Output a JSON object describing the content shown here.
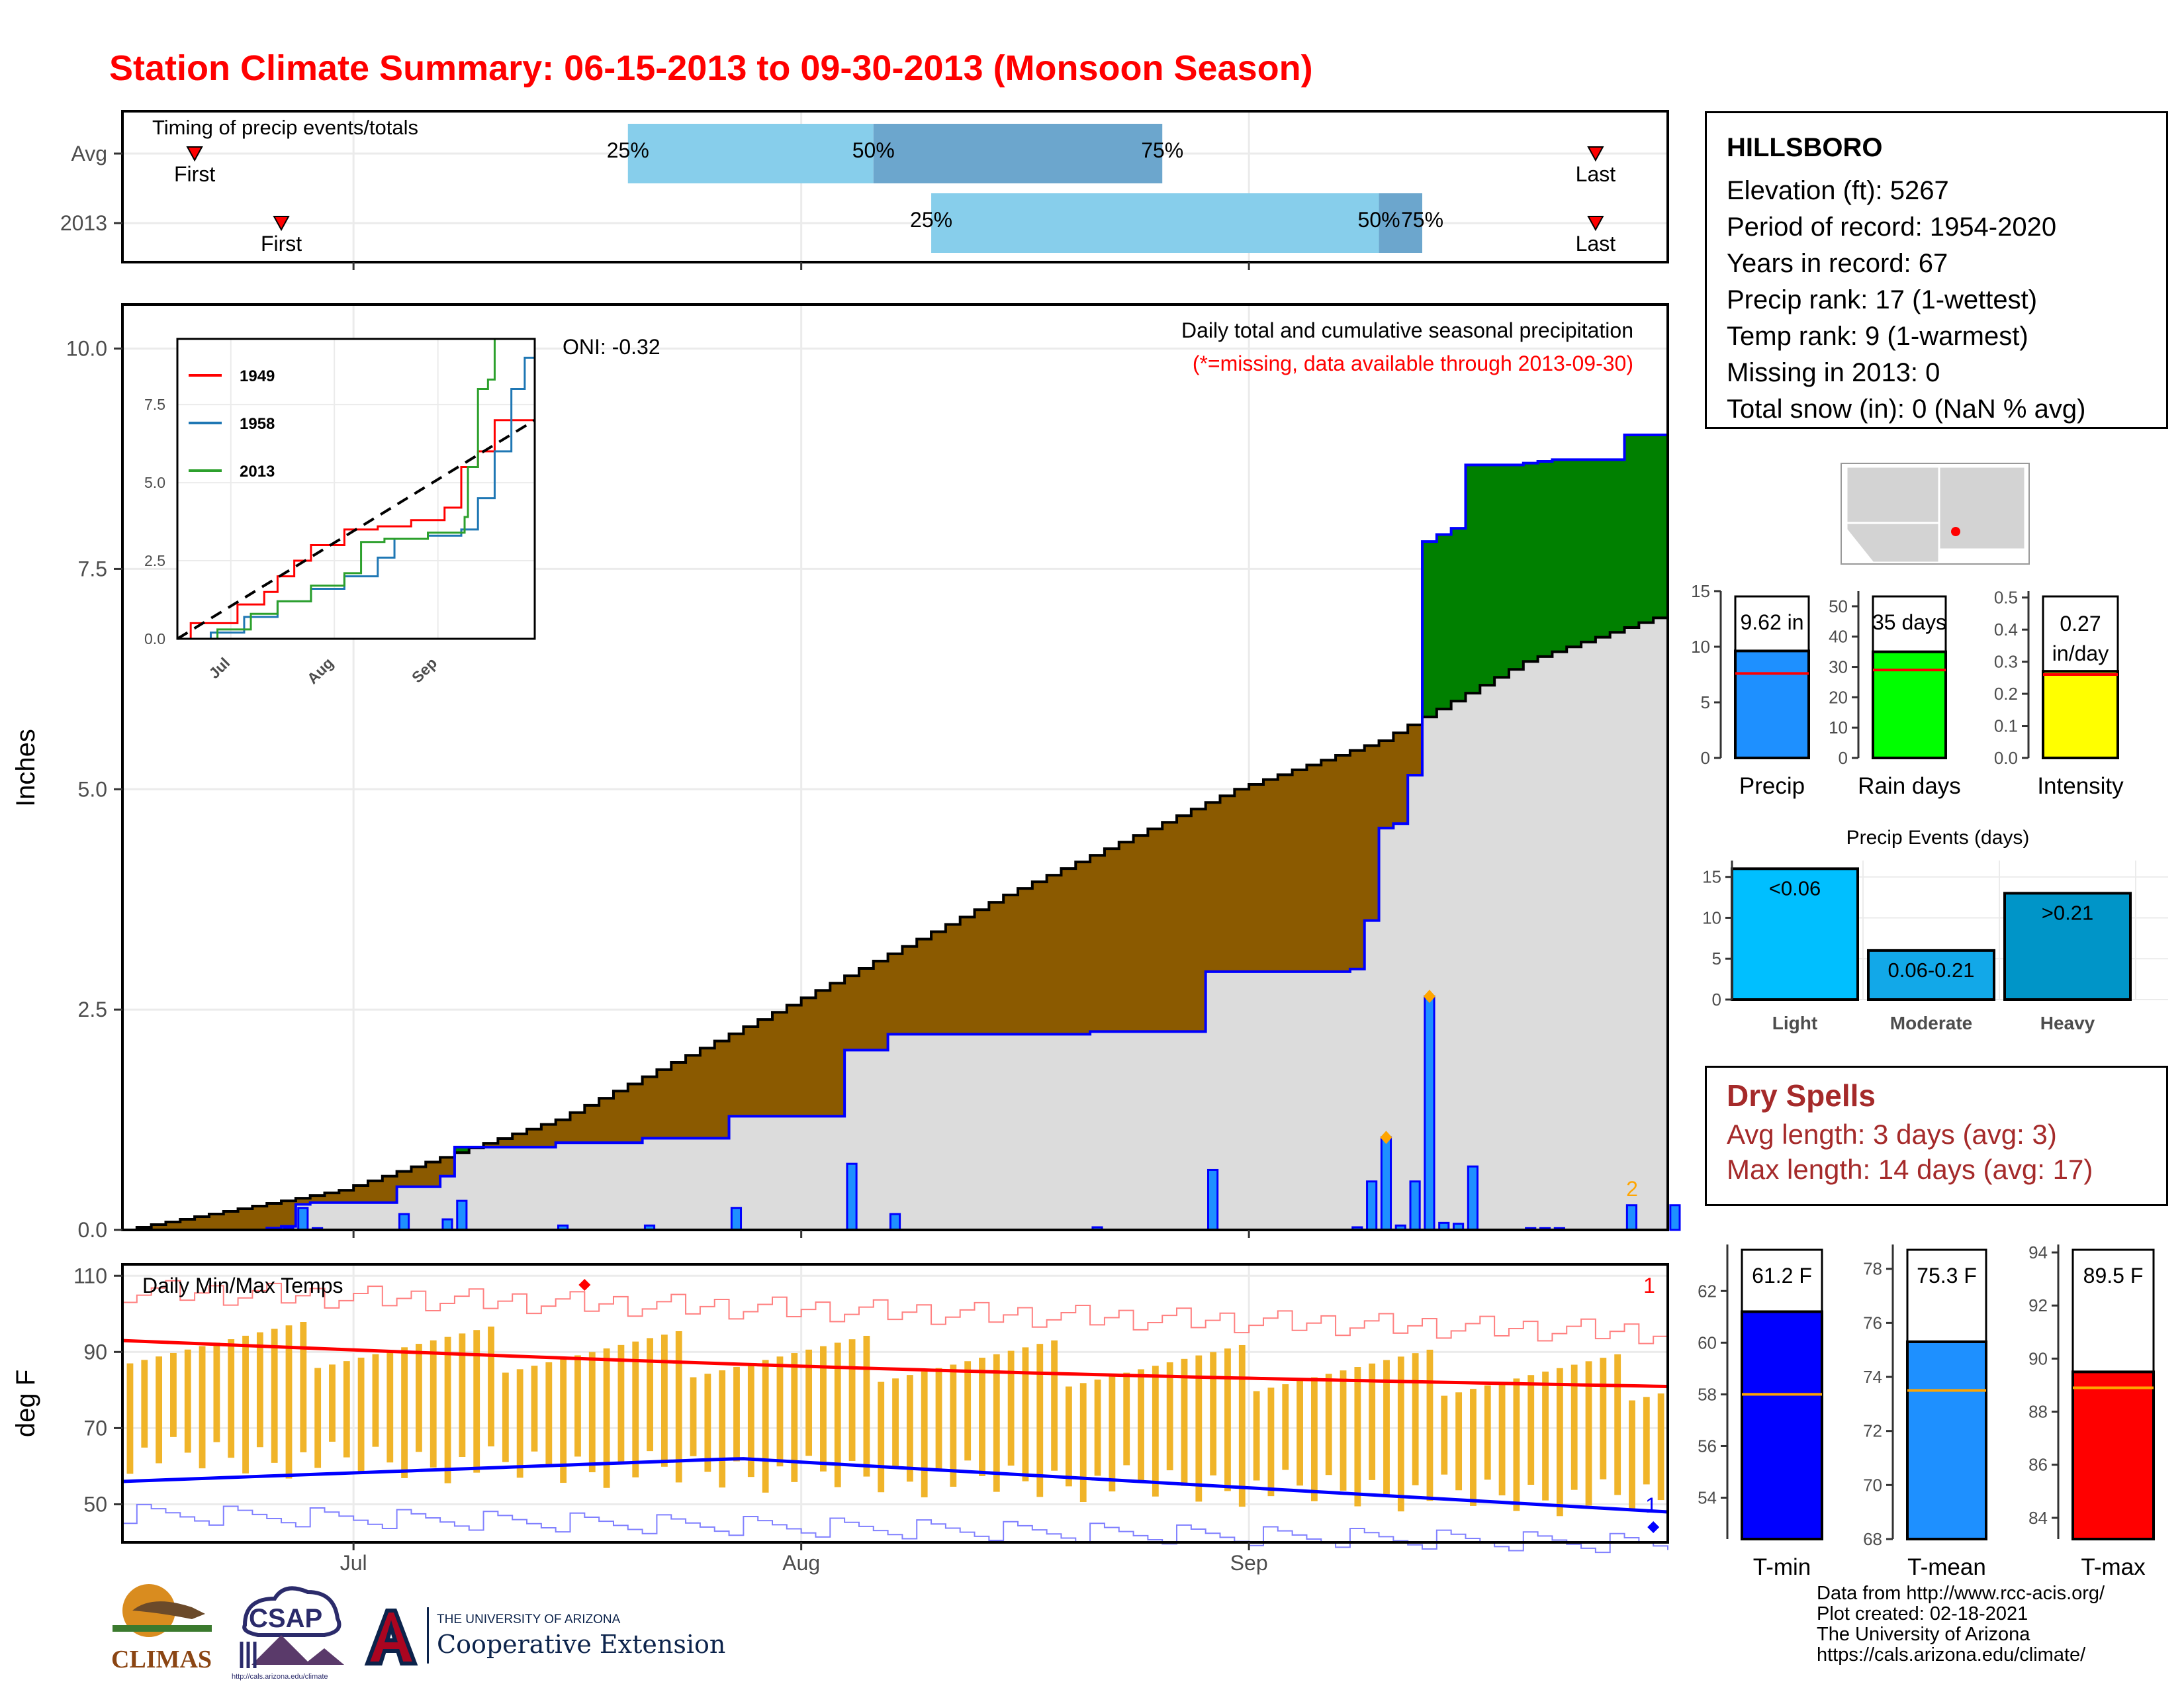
{
  "title": "Station Climate Summary: 06-15-2013 to 09-30-2013 (Monsoon Season)",
  "timing_panel": {
    "label": "Timing of precip events/totals",
    "rows": [
      "Avg",
      "2013"
    ],
    "avg": {
      "first": "2013-06-20",
      "q25": "2013-07-20",
      "q50": "2013-08-06",
      "q75": "2013-08-26",
      "last": "2013-09-25"
    },
    "y2013": {
      "first": "2013-06-26",
      "q25": "2013-08-10",
      "q50": "2013-09-10",
      "q75": "2013-09-13",
      "last": "2013-09-25"
    },
    "labels": {
      "first": "First",
      "last": "Last",
      "q25": "25%",
      "q50": "50%",
      "q75": "75%"
    }
  },
  "precip_panel": {
    "heading": "Daily total and cumulative seasonal precipitation",
    "missing_note": "(*=missing, data available through 2013-09-30)",
    "oni": "ONI: -0.32",
    "ylabel": "Inches",
    "corner_note": "2",
    "x_ticks": [
      "Jul",
      "Aug",
      "Sep"
    ],
    "y_ticks": [
      "0.0",
      "2.5",
      "5.0",
      "7.5",
      "10.0"
    ]
  },
  "temp_panel": {
    "heading": "Daily Min/Max Temps",
    "ylabel": "deg F",
    "corner_top": "1",
    "corner_bottom": "1",
    "y_ticks": [
      "50",
      "70",
      "90",
      "110"
    ],
    "x_ticks": [
      "Jul",
      "Aug",
      "Sep"
    ]
  },
  "station": {
    "name": "HILLSBORO",
    "lines": [
      "Elevation (ft): 5267",
      "Period of record: 1954-2020",
      "Years in record: 67",
      "Precip rank: 17 (1-wettest)",
      "Temp rank: 9 (1-warmest)",
      "Missing in 2013: 0",
      "Total snow (in): 0 (NaN % avg)"
    ]
  },
  "inset": {
    "legend": [
      "1949",
      "1958",
      "2013"
    ],
    "colors": [
      "#ff0000",
      "#1f77b4",
      "#2ca02c"
    ],
    "y_ticks": [
      "0.0",
      "2.5",
      "5.0",
      "7.5"
    ],
    "x_ticks": [
      "Jul",
      "Aug",
      "Sep"
    ]
  },
  "summary_bars": {
    "precip": {
      "label": "Precip",
      "value_label": "9.62 in",
      "value": 9.62,
      "avg": 7.6,
      "ylim": [
        0,
        15
      ],
      "ticks": [
        "0",
        "5",
        "10",
        "15"
      ],
      "color": "#1e90ff"
    },
    "rain_days": {
      "label": "Rain days",
      "value_label": "35 days",
      "value": 35,
      "avg": 29,
      "ylim": [
        0,
        55
      ],
      "ticks": [
        "0",
        "10",
        "20",
        "30",
        "40",
        "50"
      ],
      "color": "#00ff00"
    },
    "intensity": {
      "label": "Intensity",
      "value_label1": "0.27",
      "value_label2": "in/day",
      "value": 0.27,
      "avg": 0.26,
      "ylim": [
        0,
        0.52
      ],
      "ticks": [
        "0.0",
        "0.1",
        "0.2",
        "0.3",
        "0.4",
        "0.5"
      ],
      "color": "#ffff00"
    }
  },
  "precip_events": {
    "title": "Precip Events (days)",
    "categories": [
      "Light",
      "Moderate",
      "Heavy"
    ],
    "labels": [
      "<0.06",
      "0.06-0.21",
      ">0.21"
    ],
    "values": [
      16,
      6,
      13
    ],
    "ticks": [
      "0",
      "5",
      "10",
      "15"
    ],
    "colors": [
      "#00bfff",
      "#12a8e8",
      "#0095c8"
    ]
  },
  "dry_spells": {
    "title": "Dry Spells",
    "avg": "Avg length: 3 days (avg: 3)",
    "max": "Max length: 14 days (avg: 17)"
  },
  "temp_bars": {
    "tmin": {
      "label": "T-min",
      "value_label": "61.2 F",
      "value": 61.2,
      "avg": 58.0,
      "ylim": [
        52.4,
        63.8
      ],
      "ticks": [
        "54",
        "56",
        "58",
        "60",
        "62"
      ],
      "color": "#0000ff"
    },
    "tmean": {
      "label": "T-mean",
      "value_label": "75.3 F",
      "value": 75.3,
      "avg": 73.5,
      "ylim": [
        68,
        78.9
      ],
      "ticks": [
        "68",
        "70",
        "72",
        "74",
        "76",
        "78"
      ],
      "color": "#1e90ff"
    },
    "tmax": {
      "label": "T-max",
      "value_label": "89.5 F",
      "value": 89.5,
      "avg": 88.9,
      "ylim": [
        83.2,
        94.3
      ],
      "ticks": [
        "84",
        "86",
        "88",
        "90",
        "92",
        "94"
      ],
      "color": "#ff0000"
    }
  },
  "footer": [
    "Data from http://www.rcc-acis.org/",
    "Plot created: 02-18-2021",
    "The University of Arizona",
    "https://cals.arizona.edu/climate/"
  ],
  "logos": {
    "climas": "CLIMAS",
    "csap": "CSAP",
    "csap_url": "http://cals.arizona.edu/climate",
    "ua_line1": "THE UNIVERSITY OF ARIZONA",
    "ua_line2": "Cooperative Extension"
  },
  "chart_data": {
    "type": "area",
    "start_date": "2013-06-15",
    "xlabel": "",
    "ylabel": "Inches",
    "ylim": [
      0,
      10.5
    ],
    "daily_precip_nonzero": [
      {
        "d": "2013-06-25",
        "v": 0.02
      },
      {
        "d": "2013-06-26",
        "v": 0.02
      },
      {
        "d": "2013-06-27",
        "v": 0.25
      },
      {
        "d": "2013-06-28",
        "v": 0.02
      },
      {
        "d": "2013-07-04",
        "v": 0.18
      },
      {
        "d": "2013-07-07",
        "v": 0.12
      },
      {
        "d": "2013-07-08",
        "v": 0.33
      },
      {
        "d": "2013-07-15",
        "v": 0.05
      },
      {
        "d": "2013-07-21",
        "v": 0.05
      },
      {
        "d": "2013-07-27",
        "v": 0.25
      },
      {
        "d": "2013-08-04",
        "v": 0.75
      },
      {
        "d": "2013-08-07",
        "v": 0.18
      },
      {
        "d": "2013-08-21",
        "v": 0.03
      },
      {
        "d": "2013-08-29",
        "v": 0.68
      },
      {
        "d": "2013-09-09",
        "v": 0.53
      },
      {
        "d": "2013-09-15",
        "v": 0.02
      },
      {
        "d": "2013-09-20",
        "v": 0.02
      },
      {
        "d": "2013-09-21",
        "v": 0.02
      },
      {
        "d": "2013-09-22",
        "v": 0.02
      },
      {
        "d": "2013-09-27",
        "v": 0.25
      },
      {
        "d": "2013-09-30",
        "v": 0.28
      }
    ],
    "extra_precip_2013": [
      {
        "d": "2013-09-08",
        "v": 0.03
      },
      {
        "d": "2013-09-09",
        "v": 0.02
      },
      {
        "d": "2013-09-10",
        "v": 1.05
      },
      {
        "d": "2013-09-11",
        "v": 0.05
      },
      {
        "d": "2013-09-12",
        "v": 0.55
      },
      {
        "d": "2013-09-13",
        "v": 2.65
      },
      {
        "d": "2013-09-14",
        "v": 0.08
      },
      {
        "d": "2013-09-15",
        "v": 0.05
      },
      {
        "d": "2013-09-16",
        "v": 0.72
      },
      {
        "d": "2013-09-27",
        "v": 0.03
      }
    ],
    "avg_cumulative": [
      {
        "d": "2013-06-15",
        "v": 0.0
      },
      {
        "d": "2013-06-30",
        "v": 0.45
      },
      {
        "d": "2013-07-15",
        "v": 1.25
      },
      {
        "d": "2013-07-31",
        "v": 2.55
      },
      {
        "d": "2013-08-15",
        "v": 3.8
      },
      {
        "d": "2013-08-31",
        "v": 5.0
      },
      {
        "d": "2013-09-10",
        "v": 5.55
      },
      {
        "d": "2013-09-20",
        "v": 6.45
      },
      {
        "d": "2013-09-30",
        "v": 7.0
      }
    ],
    "max_temp_avg_range": [
      93,
      81
    ],
    "min_temp_avg_range": [
      56,
      48
    ]
  }
}
